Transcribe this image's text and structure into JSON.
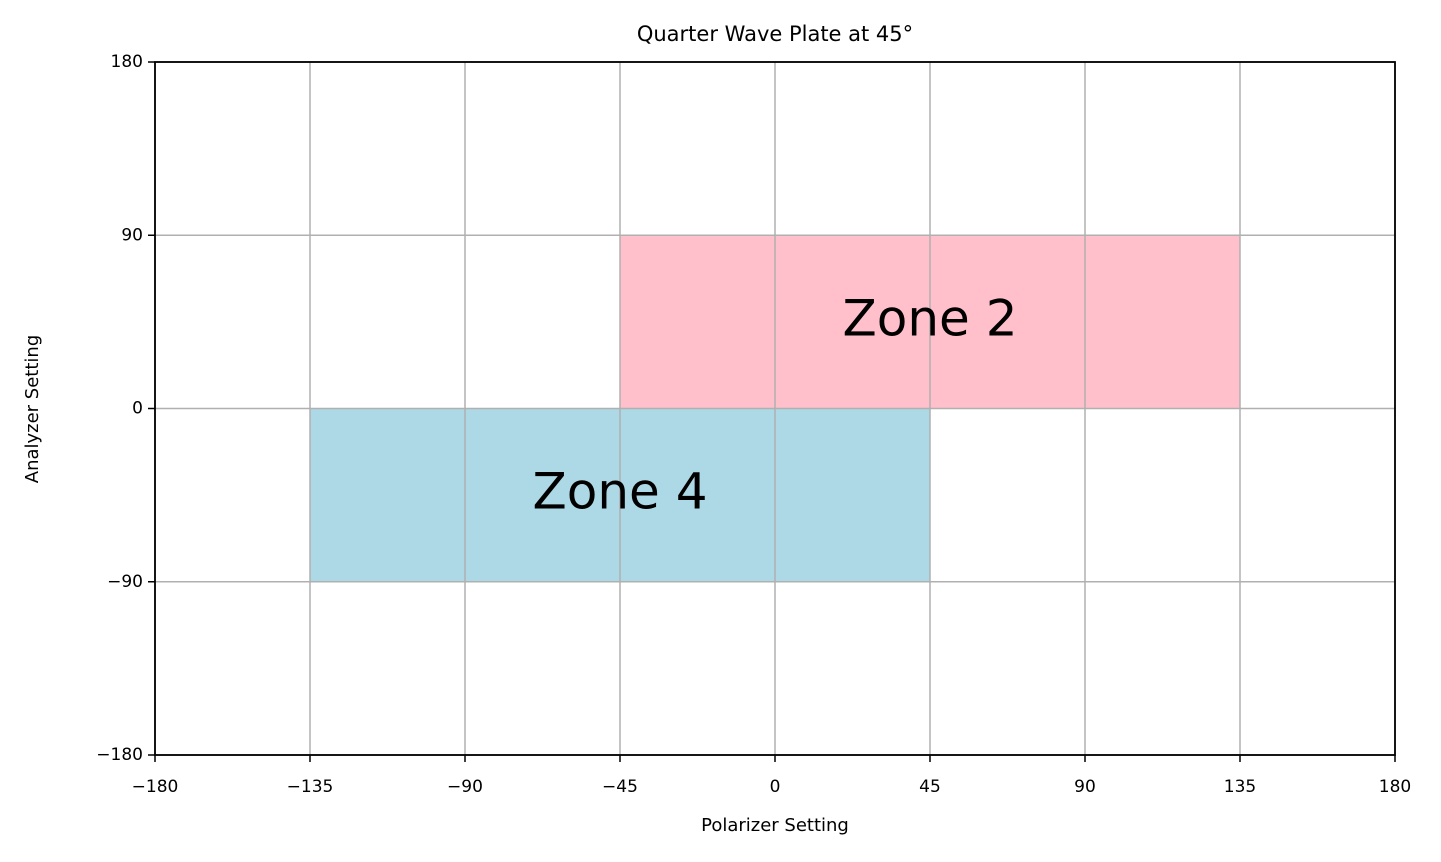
{
  "chart_data": {
    "type": "rectangles",
    "title": "Quarter Wave Plate at 45°",
    "x_label": "Polarizer Setting",
    "y_label": "Analyzer Setting",
    "zones": [
      {
        "name": "Zone 2",
        "color": "#ffc0cb",
        "x": [
          -45,
          135
        ],
        "y": [
          0,
          90
        ]
      },
      {
        "name": "Zone 4",
        "color": "#add8e6",
        "x": [
          -135,
          45
        ],
        "y": [
          -90,
          0
        ]
      }
    ],
    "xlim": [
      -180,
      180
    ],
    "xticks": [
      {
        "value": -180,
        "label": "−180"
      },
      {
        "value": -135,
        "label": "−135"
      },
      {
        "value": -90,
        "label": "−90"
      },
      {
        "value": -45,
        "label": "−45"
      },
      0,
      45,
      90,
      135,
      180
    ],
    "ylim": [
      -180,
      180
    ],
    "yticks": [
      {
        "value": -180,
        "label": "−180"
      },
      {
        "value": -90,
        "label": "−90"
      },
      0,
      90,
      180
    ],
    "grid": true
  }
}
